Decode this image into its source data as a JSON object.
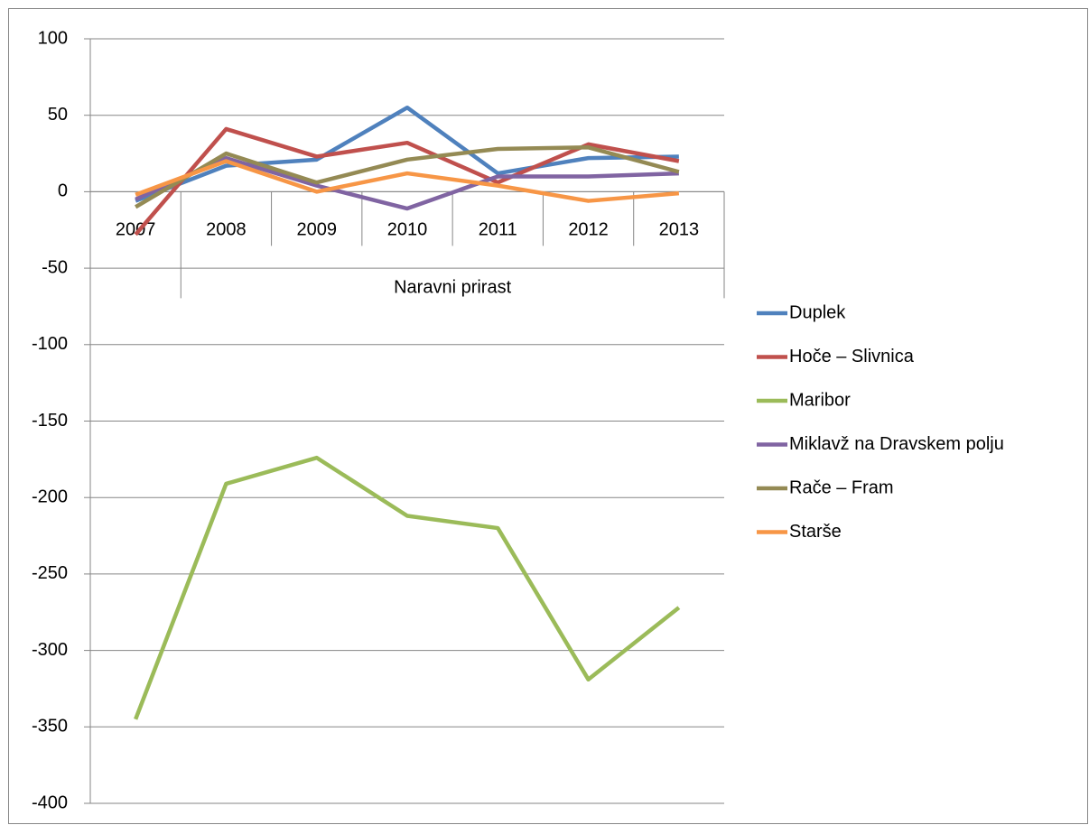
{
  "chart_data": {
    "type": "line",
    "categories": [
      "2007",
      "2008",
      "2009",
      "2010",
      "2011",
      "2012",
      "2013"
    ],
    "group_label": "Naravni prirast",
    "series": [
      {
        "name": "Duplek",
        "color": "#4f81bd",
        "values": [
          -6,
          17,
          21,
          55,
          12,
          22,
          23
        ]
      },
      {
        "name": "Hoče – Slivnica",
        "color": "#c0504d",
        "values": [
          -28,
          41,
          23,
          32,
          6,
          31,
          20
        ]
      },
      {
        "name": "Maribor",
        "color": "#9bbb59",
        "values": [
          -345,
          -191,
          -174,
          -212,
          -220,
          -319,
          -272
        ]
      },
      {
        "name": "Miklavž na Dravskem polju",
        "color": "#8064a2",
        "values": [
          -5,
          22,
          4,
          -11,
          10,
          10,
          12
        ]
      },
      {
        "name": "Rače – Fram",
        "color": "#948a54",
        "values": [
          -10,
          25,
          6,
          21,
          28,
          29,
          13
        ]
      },
      {
        "name": "Starše",
        "color": "#f79646",
        "values": [
          -2,
          20,
          0,
          12,
          4,
          -6,
          -1
        ]
      }
    ],
    "ylim": [
      -400,
      100
    ],
    "yticks": [
      -400,
      -350,
      -300,
      -250,
      -200,
      -150,
      -100,
      -50,
      0,
      50,
      100
    ],
    "grid": true,
    "legend": "right"
  }
}
